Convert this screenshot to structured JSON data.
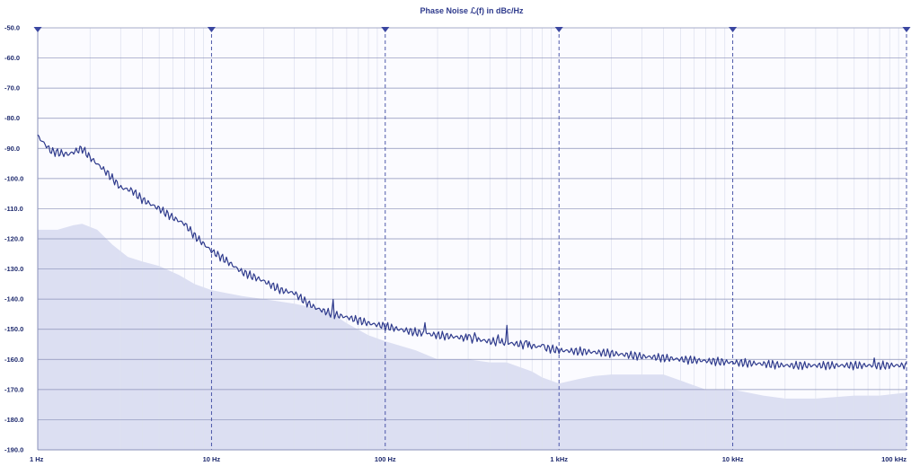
{
  "chart_data": {
    "type": "line",
    "title": "Phase Noise ℒ(f) in dBc/Hz",
    "xlabel": "",
    "ylabel": "",
    "x_scale": "log",
    "xlim": [
      1,
      100000
    ],
    "ylim": [
      -190,
      -50
    ],
    "grid": true,
    "y_ticks": [
      -50,
      -60,
      -70,
      -80,
      -90,
      -100,
      -110,
      -120,
      -130,
      -140,
      -150,
      -160,
      -170,
      -180,
      -190
    ],
    "y_tick_labels": [
      "-50.0",
      "-60.0",
      "-70.0",
      "-80.0",
      "-90.0",
      "-100.0",
      "-110.0",
      "-120.0",
      "-130.0",
      "-140.0",
      "-150.0",
      "-160.0",
      "-170.0",
      "-180.0",
      "-190.0"
    ],
    "x_ticks": [
      1,
      10,
      100,
      1000,
      10000,
      100000
    ],
    "x_tick_labels": [
      "1 Hz",
      "10 Hz",
      "100 Hz",
      "1 kHz",
      "10 kHz",
      "100 kHz"
    ],
    "colors": {
      "line": "#2e3a8c",
      "area": "#dcdff2",
      "major_grid": "#8a90b8",
      "minor_grid": "#dde0ee",
      "decade_marker": "#3a46a0",
      "text": "#1e2a6e"
    },
    "series": [
      {
        "role": "measured",
        "x": [
          1,
          1.2,
          1.5,
          1.8,
          2,
          2.5,
          3,
          3.5,
          4,
          5,
          6,
          7,
          8,
          10,
          12,
          15,
          20,
          25,
          30,
          35,
          40,
          50,
          60,
          70,
          80,
          100,
          120,
          150,
          200,
          250,
          300,
          400,
          500,
          600,
          700,
          800,
          1000,
          1500,
          2000,
          3000,
          4000,
          5000,
          7000,
          10000,
          15000,
          20000,
          30000,
          50000,
          70000,
          100000
        ],
        "y": [
          -86,
          -91,
          -92,
          -90,
          -93,
          -98,
          -103,
          -104,
          -107,
          -110,
          -113,
          -115,
          -119,
          -124,
          -127,
          -131,
          -134,
          -137,
          -138,
          -141,
          -143,
          -145,
          -146,
          -147,
          -148,
          -149,
          -150,
          -151,
          -152,
          -152.5,
          -153,
          -154,
          -154.5,
          -155,
          -155.5,
          -156,
          -157,
          -157.5,
          -158,
          -159,
          -159.5,
          -160,
          -160.5,
          -161,
          -161.5,
          -162,
          -162,
          -162,
          -162,
          -162
        ]
      },
      {
        "role": "reference",
        "x": [
          1,
          1.3,
          1.6,
          1.8,
          2.2,
          2.7,
          3.3,
          4,
          5,
          6.5,
          8,
          10,
          15,
          20,
          30,
          40,
          50,
          60,
          80,
          100,
          150,
          200,
          300,
          400,
          500,
          700,
          800,
          1000,
          1300,
          1600,
          2000,
          3000,
          4000,
          5000,
          7000,
          10000,
          15000,
          20000,
          30000,
          50000,
          70000,
          100000
        ],
        "y": [
          -117,
          -117,
          -115.5,
          -115,
          -117,
          -122,
          -126,
          -127.5,
          -129,
          -132,
          -135,
          -137,
          -139,
          -140,
          -141.5,
          -143,
          -145,
          -148,
          -152,
          -154,
          -157,
          -160,
          -160,
          -161,
          -161,
          -164,
          -166,
          -168,
          -166.5,
          -165.5,
          -165,
          -165,
          -165,
          -167,
          -170,
          -170,
          -172,
          -173,
          -173,
          -172,
          -172,
          -171
        ]
      }
    ],
    "spikes": [
      {
        "x": 50,
        "y": -140
      },
      {
        "x": 170,
        "y": -146
      },
      {
        "x": 300,
        "y": -150
      },
      {
        "x": 330,
        "y": -150
      },
      {
        "x": 450,
        "y": -151
      },
      {
        "x": 500,
        "y": -148
      },
      {
        "x": 650,
        "y": -152
      },
      {
        "x": 800,
        "y": -153
      },
      {
        "x": 65000,
        "y": -160
      }
    ]
  }
}
